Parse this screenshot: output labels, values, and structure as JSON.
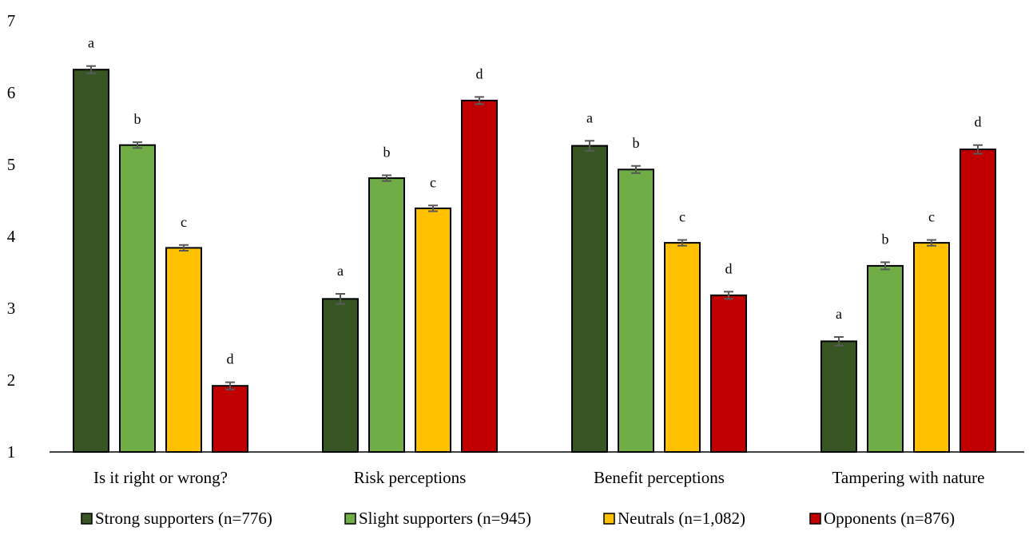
{
  "chart_data": {
    "type": "bar",
    "ylim": [
      1,
      7
    ],
    "yticks": [
      1,
      2,
      3,
      4,
      5,
      6,
      7
    ],
    "grid": false,
    "legend_position": "bottom",
    "categories": [
      "Is it right or wrong?",
      "Risk perceptions",
      "Benefit perceptions",
      "Tampering with nature"
    ],
    "series": [
      {
        "name": "Strong supporters (n=776)",
        "color": "#375623",
        "values": [
          6.32,
          3.13,
          5.26,
          2.54
        ],
        "errors": [
          0.05,
          0.07,
          0.07,
          0.06
        ],
        "letters": [
          "a",
          "a",
          "a",
          "a"
        ]
      },
      {
        "name": "Slight supporters (n=945)",
        "color": "#70AD47",
        "values": [
          5.27,
          4.81,
          4.93,
          3.59
        ],
        "errors": [
          0.04,
          0.04,
          0.05,
          0.05
        ],
        "letters": [
          "b",
          "b",
          "b",
          "b"
        ]
      },
      {
        "name": "Neutrals (n=1,082)",
        "color": "#FFC000",
        "values": [
          3.84,
          4.39,
          3.91,
          3.91
        ],
        "errors": [
          0.04,
          0.04,
          0.04,
          0.04
        ],
        "letters": [
          "c",
          "c",
          "c",
          "c"
        ]
      },
      {
        "name": "Opponents (n=876)",
        "color": "#C00000",
        "values": [
          1.92,
          5.89,
          3.18,
          5.21
        ],
        "errors": [
          0.05,
          0.05,
          0.05,
          0.06
        ],
        "letters": [
          "d",
          "d",
          "d",
          "d"
        ]
      }
    ]
  }
}
